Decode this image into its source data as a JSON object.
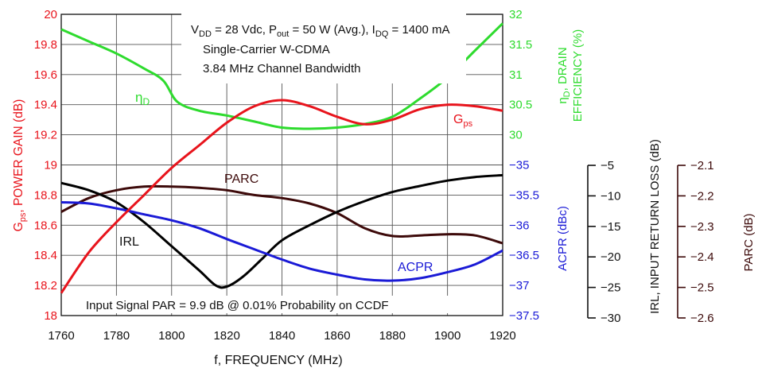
{
  "chart_data": {
    "type": "line",
    "x_axis": {
      "label": "f, FREQUENCY (MHz)",
      "min": 1760,
      "max": 1920,
      "ticks": [
        1760,
        1780,
        1800,
        1820,
        1840,
        1860,
        1880,
        1900,
        1920
      ]
    },
    "left_axis": {
      "label_main": "G",
      "label_sub": "ps",
      "label_rest": ", POWER GAIN (dB)",
      "min": 18,
      "max": 20,
      "ticks": [
        "18",
        "18.2",
        "18.4",
        "18.6",
        "18.8",
        "19",
        "19.2",
        "19.4",
        "19.6",
        "19.8",
        "20"
      ],
      "color": "#e8141c"
    },
    "right_eff_axis": {
      "label_line1_sym": "η",
      "label_line1_sub": "D",
      "label_line1_rest": ", DRAIN",
      "label_line2": "EFFICIENCY (%)",
      "min": 30,
      "max": 32,
      "ticks": [
        "30",
        "30.5",
        "31",
        "31.5",
        "32"
      ],
      "color": "#2edb2e"
    },
    "right_acpr_axis": {
      "label": "ACPR (dBc)",
      "min": -37.5,
      "max": -35,
      "ticks": [
        "−35",
        "−35.5",
        "−36",
        "−36.5",
        "−37",
        "−37.5"
      ],
      "color": "#1a1ad6"
    },
    "irl_axis": {
      "label": "IRL, INPUT RETURN LOSS (dB)",
      "ticks": [
        "−5",
        "−10",
        "−15",
        "−20",
        "−25",
        "−30"
      ]
    },
    "parc_axis": {
      "label": "PARC (dB)",
      "ticks": [
        "−2.1",
        "−2.2",
        "−2.3",
        "−2.4",
        "−2.5",
        "−2.6"
      ]
    },
    "grid": true,
    "series": [
      {
        "name": "Gps",
        "axis": "gain",
        "color": "#e8141c",
        "points": [
          [
            1760,
            18.15
          ],
          [
            1770,
            18.42
          ],
          [
            1780,
            18.62
          ],
          [
            1790,
            18.8
          ],
          [
            1800,
            18.98
          ],
          [
            1810,
            19.13
          ],
          [
            1820,
            19.28
          ],
          [
            1830,
            19.39
          ],
          [
            1840,
            19.43
          ],
          [
            1850,
            19.39
          ],
          [
            1860,
            19.32
          ],
          [
            1870,
            19.27
          ],
          [
            1880,
            19.3
          ],
          [
            1890,
            19.37
          ],
          [
            1900,
            19.4
          ],
          [
            1910,
            19.39
          ],
          [
            1920,
            19.36
          ]
        ]
      },
      {
        "name": "ηD",
        "axis": "eff",
        "color": "#2edb2e",
        "points": [
          [
            1760,
            31.75
          ],
          [
            1770,
            31.55
          ],
          [
            1780,
            31.35
          ],
          [
            1790,
            31.1
          ],
          [
            1797,
            30.9
          ],
          [
            1802,
            30.55
          ],
          [
            1810,
            30.4
          ],
          [
            1820,
            30.32
          ],
          [
            1830,
            30.22
          ],
          [
            1840,
            30.12
          ],
          [
            1850,
            30.1
          ],
          [
            1860,
            30.12
          ],
          [
            1870,
            30.18
          ],
          [
            1880,
            30.3
          ],
          [
            1890,
            30.6
          ],
          [
            1900,
            30.95
          ],
          [
            1910,
            31.4
          ],
          [
            1920,
            31.85
          ]
        ]
      },
      {
        "name": "ACPR",
        "axis": "acpr",
        "color": "#1a1ad6",
        "points": [
          [
            1760,
            -35.62
          ],
          [
            1770,
            -35.64
          ],
          [
            1780,
            -35.72
          ],
          [
            1790,
            -35.82
          ],
          [
            1800,
            -35.92
          ],
          [
            1810,
            -36.05
          ],
          [
            1820,
            -36.23
          ],
          [
            1830,
            -36.4
          ],
          [
            1840,
            -36.57
          ],
          [
            1850,
            -36.72
          ],
          [
            1860,
            -36.82
          ],
          [
            1870,
            -36.9
          ],
          [
            1880,
            -36.92
          ],
          [
            1890,
            -36.88
          ],
          [
            1900,
            -36.78
          ],
          [
            1910,
            -36.65
          ],
          [
            1920,
            -36.42
          ]
        ]
      },
      {
        "name": "IRL",
        "axis": "acpr",
        "color": "#000000",
        "points": [
          [
            1760,
            -35.3
          ],
          [
            1770,
            -35.42
          ],
          [
            1780,
            -35.62
          ],
          [
            1790,
            -35.95
          ],
          [
            1800,
            -36.35
          ],
          [
            1810,
            -36.75
          ],
          [
            1816,
            -37.0
          ],
          [
            1820,
            -37.02
          ],
          [
            1826,
            -36.85
          ],
          [
            1833,
            -36.55
          ],
          [
            1840,
            -36.25
          ],
          [
            1850,
            -36.0
          ],
          [
            1860,
            -35.78
          ],
          [
            1870,
            -35.6
          ],
          [
            1880,
            -35.45
          ],
          [
            1890,
            -35.35
          ],
          [
            1900,
            -35.26
          ],
          [
            1910,
            -35.2
          ],
          [
            1920,
            -35.17
          ]
        ]
      },
      {
        "name": "PARC",
        "axis": "acpr",
        "color": "#3d0a0a",
        "points": [
          [
            1760,
            -35.78
          ],
          [
            1770,
            -35.55
          ],
          [
            1780,
            -35.42
          ],
          [
            1790,
            -35.36
          ],
          [
            1800,
            -35.36
          ],
          [
            1810,
            -35.38
          ],
          [
            1820,
            -35.42
          ],
          [
            1830,
            -35.5
          ],
          [
            1840,
            -35.55
          ],
          [
            1850,
            -35.64
          ],
          [
            1860,
            -35.8
          ],
          [
            1870,
            -36.05
          ],
          [
            1880,
            -36.18
          ],
          [
            1890,
            -36.17
          ],
          [
            1900,
            -36.15
          ],
          [
            1910,
            -36.17
          ],
          [
            1920,
            -36.3
          ]
        ]
      }
    ],
    "annotations": {
      "conditions_line1": "V_DD = 28 Vdc, P_out = 50 W (Avg.), I_DQ = 1400 mA",
      "conditions_line2": "Single-Carrier W-CDMA",
      "conditions_line3": "3.84 MHz Channel Bandwidth",
      "bottom_note": "Input Signal PAR = 9.9 dB @ 0.01% Probability on CCDF",
      "label_gps": "G",
      "label_gps_sub": "ps",
      "label_eta": "η",
      "label_eta_sub": "D",
      "label_parc": "PARC",
      "label_irl": "IRL",
      "label_acpr": "ACPR"
    }
  }
}
